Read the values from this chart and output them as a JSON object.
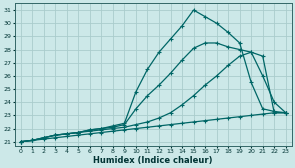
{
  "title": "",
  "xlabel": "Humidex (Indice chaleur)",
  "background_color": "#cce8e8",
  "grid_color": "#aacccc",
  "line_color": "#006666",
  "xlim": [
    -0.5,
    23.5
  ],
  "ylim": [
    20.7,
    31.5
  ],
  "yticks": [
    21,
    22,
    23,
    24,
    25,
    26,
    27,
    28,
    29,
    30,
    31
  ],
  "xticks": [
    0,
    1,
    2,
    3,
    4,
    5,
    6,
    7,
    8,
    9,
    10,
    11,
    12,
    13,
    14,
    15,
    16,
    17,
    18,
    19,
    20,
    21,
    22,
    23
  ],
  "line1_x": [
    0,
    1,
    2,
    3,
    4,
    5,
    6,
    7,
    8,
    9,
    10,
    11,
    12,
    13,
    14,
    15,
    16,
    17,
    18,
    19,
    20,
    21,
    22,
    23
  ],
  "line1_y": [
    21.0,
    21.1,
    21.2,
    21.3,
    21.4,
    21.5,
    21.6,
    21.7,
    21.8,
    21.9,
    22.0,
    22.1,
    22.2,
    22.3,
    22.4,
    22.5,
    22.6,
    22.7,
    22.8,
    22.9,
    23.0,
    23.1,
    23.2,
    23.2
  ],
  "line2_x": [
    0,
    1,
    2,
    3,
    4,
    5,
    6,
    7,
    8,
    9,
    10,
    11,
    12,
    13,
    14,
    15,
    16,
    17,
    18,
    19,
    20,
    21,
    22,
    23
  ],
  "line2_y": [
    21.0,
    21.1,
    21.3,
    21.5,
    21.6,
    21.7,
    21.8,
    21.9,
    22.0,
    22.1,
    22.3,
    22.5,
    22.8,
    23.2,
    23.8,
    24.5,
    25.3,
    26.0,
    26.8,
    27.5,
    27.8,
    27.5,
    23.2,
    23.2
  ],
  "line3_x": [
    0,
    1,
    2,
    3,
    4,
    5,
    6,
    7,
    8,
    9,
    10,
    11,
    12,
    13,
    14,
    15,
    16,
    17,
    18,
    19,
    20,
    21,
    22,
    23
  ],
  "line3_y": [
    21.0,
    21.1,
    21.3,
    21.5,
    21.6,
    21.7,
    21.9,
    22.0,
    22.1,
    22.3,
    23.5,
    24.5,
    25.3,
    26.2,
    27.2,
    28.1,
    28.5,
    28.5,
    28.2,
    28.0,
    27.8,
    26.0,
    24.0,
    23.2
  ],
  "line4_x": [
    0,
    1,
    2,
    3,
    4,
    5,
    6,
    7,
    8,
    9,
    10,
    11,
    12,
    13,
    14,
    15,
    16,
    17,
    18,
    19,
    20,
    21,
    22,
    23
  ],
  "line4_y": [
    21.0,
    21.1,
    21.3,
    21.5,
    21.6,
    21.7,
    21.9,
    22.0,
    22.2,
    22.4,
    24.8,
    26.5,
    27.8,
    28.8,
    29.8,
    31.0,
    30.5,
    30.0,
    29.3,
    28.5,
    25.5,
    23.5,
    23.3,
    23.2
  ]
}
